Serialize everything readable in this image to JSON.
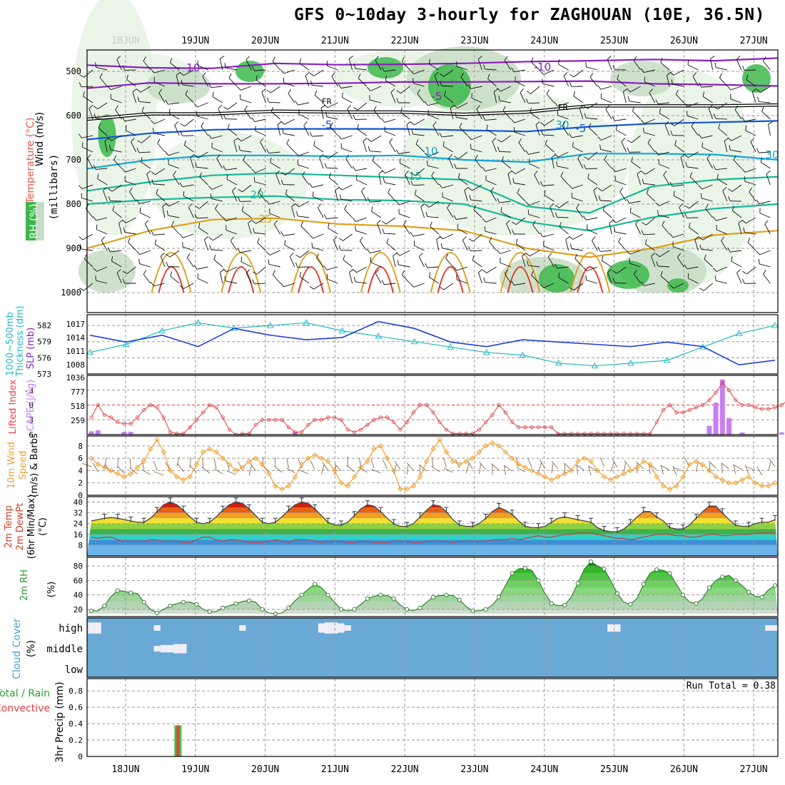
{
  "title": "GFS 0~10day 3-hourly for ZAGHOUAN (10E, 36.5N)",
  "colors": {
    "rh_green": "#3cb84a",
    "rh_light": "#e6f3e4",
    "rh_mid": "#c7dcc4",
    "rh_dark": "#8fa894",
    "temp_purple": "#8b1fbf",
    "temp_blue": "#1454d6",
    "temp_cyan": "#12a5d6",
    "temp_teal": "#17b79a",
    "temp_orange": "#e0a01e",
    "temp_red": "#e23b2b",
    "slp_blue": "#1f3fd6",
    "thickness_cyan": "#28b7c4",
    "cape_purple": "#c77ff0",
    "li_red": "#e04040",
    "wind_orange": "#f0a030",
    "cloud_blue": "#6aa8d6",
    "precip_green": "#40c040",
    "precip_red": "#e04040"
  },
  "chart_data": [
    {
      "type": "contour",
      "panel": "upper-air cross-section",
      "x_dates": [
        "18JUN",
        "19JUN",
        "20JUN",
        "21JUN",
        "22JUN",
        "23JUN",
        "24JUN",
        "25JUN",
        "26JUN",
        "27JUN"
      ],
      "ylabel_wind": "Wind (m/s)",
      "ylabel_temp": "Temperature (°C)",
      "ylabel_rh": "RH (%)",
      "ylabel_pressure": "(millibars)",
      "pressure_ticks": [
        500,
        600,
        700,
        800,
        900,
        1000
      ],
      "ylim": [
        1000,
        450
      ],
      "contour_labels": [
        "-10",
        "-10",
        "-5",
        "FR",
        "FR",
        "-5",
        "-5",
        "10",
        "-15",
        "20",
        "25",
        "30",
        "30"
      ],
      "isotherms": [
        {
          "label": "-10",
          "color": "#8b1fbf",
          "p": [
            486,
            492,
            493,
            482,
            485,
            484,
            482,
            478,
            476,
            473,
            476,
            470
          ]
        },
        {
          "label": "-5",
          "color": "#8b1fbf",
          "p": [
            538,
            526,
            528,
            528,
            527,
            524,
            524,
            523,
            522,
            528,
            530,
            533
          ]
        },
        {
          "label": "FR",
          "color": "#000000",
          "p": [
            608,
            596,
            596,
            590,
            592,
            592,
            597,
            592,
            578,
            578,
            578,
            576
          ]
        },
        {
          "label": "-5",
          "color": "#1454d6",
          "p": [
            654,
            640,
            632,
            630,
            630,
            630,
            633,
            636,
            625,
            618,
            615,
            612
          ]
        },
        {
          "label": "10",
          "color": "#12a5d6",
          "p": [
            720,
            700,
            690,
            690,
            692,
            690,
            700,
            705,
            686,
            686,
            688,
            700
          ]
        },
        {
          "label": "-15",
          "color": "#17b79a",
          "p": [
            770,
            750,
            735,
            730,
            735,
            740,
            745,
            805,
            820,
            760,
            745,
            738
          ]
        },
        {
          "label": "20",
          "color": "#17b79a",
          "p": [
            800,
            790,
            785,
            782,
            790,
            792,
            800,
            840,
            860,
            830,
            810,
            800
          ]
        },
        {
          "label": "25",
          "color": "#e0a01e",
          "p": [
            900,
            860,
            835,
            832,
            845,
            850,
            860,
            900,
            920,
            900,
            870,
            860
          ]
        }
      ]
    },
    {
      "type": "line",
      "panel": "SLP and thickness",
      "ylabel_left": "Thickness (dm)",
      "ylabel_left2": "1000~500mb",
      "ylabel_right": "SLP (mb)",
      "thickness_ticks": [
        573,
        576,
        579,
        582
      ],
      "slp_ticks": [
        1008,
        1011,
        1014,
        1017
      ],
      "series": [
        {
          "name": "Thickness",
          "unit": "dm",
          "values": [
            577.0,
            578.5,
            581.0,
            582.5,
            581.5,
            582.0,
            582.5,
            581.0,
            580.0,
            579.0,
            578.0,
            577.0,
            576.5,
            575.0,
            574.5,
            575.0,
            575.5,
            578.0,
            580.5,
            582.0
          ]
        },
        {
          "name": "SLP",
          "unit": "mb",
          "values": [
            1014.5,
            1013.0,
            1014.5,
            1012.0,
            1016.0,
            1014.5,
            1013.5,
            1014.0,
            1017.5,
            1016.0,
            1013.0,
            1012.0,
            1013.5,
            1013.0,
            1012.5,
            1012.0,
            1013.0,
            1012.0,
            1008.0,
            1009.0
          ]
        }
      ]
    },
    {
      "type": "bar",
      "panel": "Lifted index and CAPE",
      "ylabel_left": "Lifted Index",
      "ylabel_right": "CAPE (J/kg)",
      "li_ticks": [
        -3,
        0,
        3,
        6
      ],
      "cape_ticks": [
        259,
        518,
        777,
        1036
      ],
      "cape_values": [
        60,
        80,
        0,
        0,
        0,
        50,
        50,
        0,
        0,
        0,
        0,
        0,
        0,
        0,
        0,
        0,
        0,
        0,
        0,
        0,
        0,
        0,
        0,
        0,
        0,
        0,
        0,
        0,
        0,
        0,
        0,
        50,
        0,
        0,
        0,
        0,
        0,
        0,
        0,
        0,
        0,
        0,
        0,
        0,
        0,
        0,
        0,
        0,
        0,
        0,
        0,
        0,
        0,
        0,
        0,
        0,
        0,
        0,
        0,
        0,
        0,
        0,
        0,
        0,
        0,
        0,
        0,
        0,
        0,
        0,
        0,
        0,
        0,
        0,
        0,
        0,
        0,
        0,
        0,
        0,
        0,
        0,
        0,
        0,
        0,
        0,
        0,
        0,
        0,
        0,
        0,
        0,
        0,
        0,
        160,
        580,
        1000,
        300,
        0,
        40,
        0,
        0,
        0,
        0,
        0,
        40,
        80
      ],
      "li_values": [
        2.5,
        0.0,
        2.0,
        2.5,
        3.5,
        3.8,
        3.8,
        2.5,
        1.0,
        0.0,
        0.5,
        2.5,
        5.5,
        5.8,
        5.8,
        4.5,
        3.0,
        1.5,
        0.0,
        0.5,
        2.5,
        5.0,
        6.0,
        5.8,
        5.8,
        4.0,
        3.0,
        3.0,
        3.0,
        3.0,
        4.5,
        5.5,
        5.5,
        4.0,
        3.0,
        3.0,
        2.5,
        2.5,
        3.0,
        5.0,
        5.5,
        5.0,
        4.0,
        3.0,
        2.5,
        2.5,
        3.5,
        5.0,
        3.5,
        1.5,
        0.0,
        0.0,
        1.5,
        3.5,
        5.0,
        5.8,
        5.8,
        5.8,
        5.8,
        5.0,
        3.5,
        2.0,
        0.0,
        1.5,
        3.5,
        4.5,
        4.5,
        4.5,
        4.5,
        4.5,
        4.5,
        5.8,
        5.8,
        5.8,
        5.8,
        5.8,
        5.8,
        5.8,
        5.8,
        5.8,
        5.8,
        5.8,
        5.8,
        5.8,
        5.8,
        5.8,
        3.5,
        1.0,
        0.0,
        1.5,
        1.5,
        1.0,
        0.5,
        0.0,
        -1.0,
        -2.5,
        -4.5,
        -3.0,
        -1.0,
        0.0,
        0.0,
        0.5,
        0.8,
        0.8,
        0.5,
        0.0,
        -1.0
      ]
    },
    {
      "type": "line",
      "panel": "10m wind",
      "ylabel": "10m Wind Speed (m/s) & Barbs",
      "ylabel_parts": [
        "10m Wind",
        "Speed",
        "(m/s) & Barbs"
      ],
      "ticks": [
        0,
        2,
        4,
        6,
        8
      ],
      "values": [
        6.0,
        5.0,
        4.5,
        4.0,
        3.5,
        3.0,
        3.5,
        4.5,
        5.5,
        7.5,
        9.0,
        7.0,
        4.0,
        3.0,
        2.5,
        3.0,
        5.0,
        7.0,
        7.5,
        7.0,
        6.0,
        5.0,
        4.0,
        4.5,
        5.5,
        6.0,
        5.0,
        3.5,
        1.5,
        1.0,
        1.5,
        3.0,
        5.0,
        6.0,
        6.5,
        6.0,
        5.5,
        4.0,
        2.0,
        1.5,
        3.0,
        4.5,
        5.5,
        7.5,
        8.0,
        6.0,
        4.0,
        1.0,
        1.0,
        1.5,
        3.0,
        5.5,
        7.5,
        9.0,
        7.0,
        5.5,
        5.0,
        5.5,
        6.0,
        7.0,
        8.0,
        8.5,
        8.0,
        7.0,
        6.0,
        5.0,
        4.5,
        4.0,
        3.5,
        3.0,
        2.5,
        3.0,
        3.5,
        4.0,
        5.5,
        6.0,
        5.5,
        4.0,
        3.0,
        2.5,
        3.0,
        3.5,
        4.0,
        4.5,
        5.5,
        5.0,
        3.0,
        1.5,
        1.0,
        1.5,
        3.0,
        5.0,
        5.5,
        5.0,
        4.0,
        3.0,
        2.5,
        2.0,
        2.0,
        2.5,
        3.0,
        2.0,
        1.5,
        1.5,
        2.0
      ]
    },
    {
      "type": "area",
      "panel": "2m temperature",
      "ylabel": "2m Temp 2m DewPt (6hr Min/Max) (°C)",
      "ylabel_parts": [
        "2m Temp",
        "2m DewPt",
        "(6hr Min/Max)",
        "(°C)"
      ],
      "ticks": [
        8,
        16,
        24,
        32,
        40
      ],
      "temp_values": [
        26.0,
        27.0,
        28.0,
        28.5,
        28.0,
        27.0,
        26.0,
        25.0,
        25.0,
        28.0,
        33.0,
        38.0,
        40.0,
        38.0,
        34.0,
        29.0,
        25.0,
        24.0,
        25.0,
        29.0,
        34.0,
        38.0,
        40.0,
        39.0,
        35.0,
        30.0,
        25.0,
        24.0,
        25.0,
        29.0,
        34.0,
        38.0,
        40.0,
        39.0,
        35.0,
        30.0,
        25.0,
        23.0,
        23.0,
        25.0,
        30.0,
        35.0,
        38.0,
        37.0,
        33.0,
        28.0,
        24.0,
        22.0,
        22.0,
        24.0,
        29.0,
        34.0,
        38.0,
        37.0,
        33.0,
        27.0,
        23.0,
        22.0,
        22.0,
        24.0,
        28.0,
        33.0,
        36.0,
        34.0,
        31.0,
        26.0,
        22.0,
        21.0,
        21.0,
        22.0,
        25.0,
        28.0,
        29.0,
        28.0,
        27.0,
        26.0,
        25.0,
        21.0,
        19.0,
        18.0,
        18.0,
        20.0,
        24.0,
        29.0,
        33.0,
        33.0,
        29.0,
        26.0,
        21.0,
        20.0,
        20.0,
        23.0,
        28.0,
        33.0,
        37.0,
        37.0,
        32.0,
        27.0,
        23.0,
        22.0,
        22.0,
        24.0,
        25.0,
        25.0,
        27.0
      ],
      "dewpt_values": [
        14.0,
        13.0,
        14.0,
        14.0,
        12.0,
        11.0,
        11.0,
        11.0,
        11.0,
        12.0,
        12.0,
        11.0,
        11.0,
        11.0,
        10.0,
        10.0,
        12.0,
        14.0,
        14.0,
        12.0,
        11.0,
        12.0,
        12.0,
        11.0,
        10.0,
        10.0,
        10.0,
        11.0,
        12.0,
        11.0,
        10.0,
        12.0,
        12.0,
        12.0,
        11.0,
        10.0,
        11.0,
        11.0,
        11.0,
        10.0,
        10.0,
        11.0,
        11.0,
        10.0,
        10.0,
        10.0,
        11.0,
        11.0,
        11.0,
        10.0,
        10.0,
        11.0,
        11.0,
        11.0,
        11.0,
        10.0,
        11.0,
        11.0,
        11.0,
        11.0,
        11.0,
        12.0,
        12.0,
        12.0,
        13.0,
        12.0,
        13.0,
        14.0,
        15.0,
        14.0,
        14.0,
        15.0,
        16.0,
        16.0,
        17.0,
        17.0,
        17.0,
        16.0,
        15.0,
        14.0,
        13.0,
        13.0,
        12.0,
        13.0,
        14.0,
        15.0,
        16.0,
        16.0,
        16.0,
        15.0,
        15.0,
        14.0,
        14.0,
        15.0,
        16.0,
        16.0,
        15.0,
        15.0,
        16.0,
        16.0,
        16.0,
        17.0,
        17.0,
        17.0,
        17.0
      ]
    },
    {
      "type": "area",
      "panel": "2m relative humidity",
      "ylabel": "2m RH (%)",
      "ylabel_parts": [
        "2m RH",
        "(%)"
      ],
      "ticks": [
        20,
        40,
        60,
        80
      ],
      "values": [
        18,
        18,
        25,
        38,
        46,
        45,
        43,
        42,
        30,
        20,
        15,
        20,
        25,
        28,
        30,
        30,
        27,
        20,
        17,
        17,
        22,
        25,
        28,
        31,
        32,
        30,
        20,
        15,
        14,
        15,
        22,
        32,
        40,
        48,
        55,
        50,
        40,
        30,
        20,
        18,
        20,
        27,
        35,
        38,
        40,
        39,
        35,
        26,
        20,
        18,
        22,
        30,
        37,
        39,
        40,
        39,
        33,
        24,
        18,
        18,
        20,
        26,
        37,
        53,
        70,
        76,
        77,
        74,
        60,
        42,
        28,
        25,
        26,
        37,
        56,
        76,
        86,
        80,
        76,
        60,
        42,
        30,
        27,
        35,
        55,
        70,
        75,
        74,
        70,
        55,
        40,
        30,
        28,
        35,
        50,
        60,
        65,
        67,
        60,
        53,
        44,
        38,
        37,
        47,
        53
      ]
    },
    {
      "type": "heatmap",
      "panel": "Cloud cover",
      "ylabel": "Cloud Cover (%)",
      "levels": [
        "high",
        "middle",
        "low"
      ],
      "high": [
        60,
        60,
        0,
        0,
        0,
        0,
        0,
        0,
        0,
        0,
        30,
        0,
        0,
        0,
        0,
        0,
        0,
        0,
        0,
        0,
        0,
        0,
        0,
        30,
        0,
        0,
        0,
        0,
        0,
        0,
        0,
        0,
        0,
        0,
        0,
        50,
        60,
        60,
        50,
        30,
        0,
        0,
        0,
        0,
        0,
        0,
        0,
        0,
        0,
        0,
        0,
        0,
        0,
        0,
        0,
        0,
        0,
        0,
        0,
        0,
        0,
        0,
        0,
        0,
        0,
        0,
        0,
        0,
        0,
        0,
        0,
        0,
        0,
        0,
        0,
        0,
        0,
        0,
        0,
        40,
        40,
        0,
        0,
        0,
        0,
        0,
        0,
        0,
        0,
        0,
        0,
        0,
        0,
        0,
        0,
        0,
        0,
        0,
        0,
        0,
        0,
        0,
        0,
        30,
        30
      ],
      "middle": [
        0,
        0,
        0,
        0,
        0,
        0,
        0,
        0,
        0,
        0,
        30,
        40,
        40,
        50,
        50,
        0,
        0,
        0,
        0,
        0,
        0,
        0,
        0,
        0,
        0,
        0,
        0,
        0,
        0,
        0,
        0,
        0,
        0,
        0,
        0,
        0,
        0,
        0,
        0,
        0,
        0,
        0,
        0,
        0,
        0,
        0,
        0,
        0,
        0,
        0,
        0,
        0,
        0,
        0,
        0,
        0,
        0,
        0,
        0,
        0,
        0,
        0,
        0,
        0,
        0,
        0,
        0,
        0,
        0,
        0,
        0,
        0,
        0,
        0,
        0,
        0,
        0,
        0,
        0,
        0,
        0,
        0,
        0,
        0,
        0,
        0,
        0,
        0,
        0,
        0,
        0,
        0,
        0,
        0,
        0,
        0,
        0,
        0,
        0,
        0,
        0,
        0,
        0,
        0,
        0
      ],
      "low": [
        0,
        0,
        0,
        0,
        0,
        0,
        0,
        0,
        0,
        0,
        0,
        0,
        0,
        0,
        0,
        0,
        0,
        0,
        0,
        0,
        0,
        0,
        0,
        0,
        0,
        0,
        0,
        0,
        0,
        0,
        0,
        0,
        0,
        0,
        0,
        0,
        0,
        0,
        0,
        0,
        0,
        0,
        0,
        0,
        0,
        0,
        0,
        0,
        0,
        0,
        0,
        0,
        0,
        0,
        0,
        0,
        0,
        0,
        0,
        0,
        0,
        0,
        0,
        0,
        0,
        0,
        0,
        0,
        0,
        0,
        0,
        0,
        0,
        0,
        0,
        0,
        0,
        0,
        0,
        0,
        0,
        0,
        0,
        0,
        0,
        0,
        0,
        0,
        0,
        0,
        0,
        0,
        0,
        0,
        0,
        0,
        0,
        0,
        0,
        0,
        0,
        0,
        0,
        0,
        0
      ]
    },
    {
      "type": "bar",
      "panel": "3hr precipitation",
      "ylabel": "3hr Precip (mm)",
      "legend_total": "Total / Rain",
      "legend_convective": "Convective",
      "annotation": "Run Total = 0.38",
      "ticks": [
        0,
        0.2,
        0.4,
        0.6,
        0.8
      ],
      "tick_labels": [
        "0",
        "0.2",
        "0.4",
        "0.6",
        "0.8"
      ],
      "ylim": [
        0,
        0.95
      ],
      "bars": [
        {
          "date": "18JUN 18Z",
          "total": 0.38,
          "convective": 0.38
        }
      ]
    }
  ]
}
